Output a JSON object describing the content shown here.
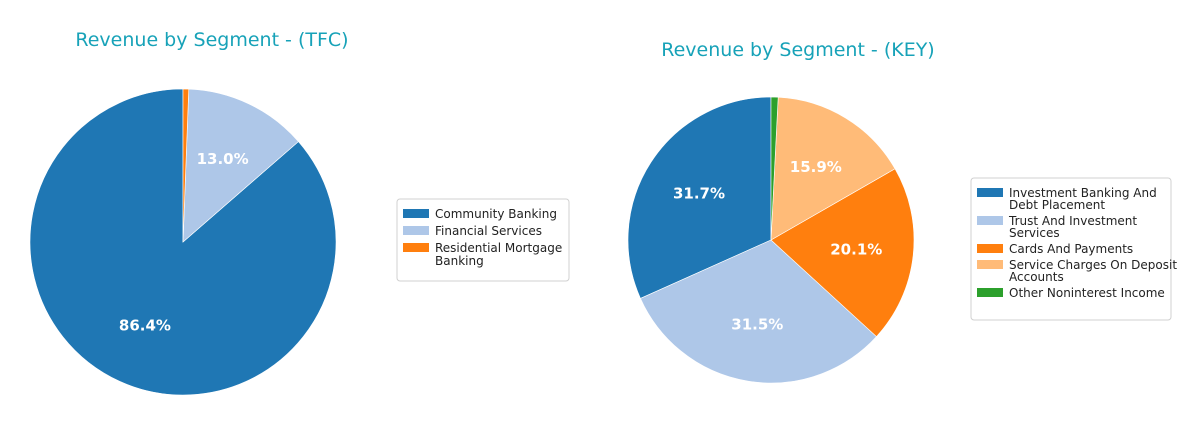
{
  "chart_data": [
    {
      "type": "pie",
      "title": "Revenue by Segment - (TFC)",
      "categories": [
        "Community Banking",
        "Financial Services",
        "Residential Mortgage Banking"
      ],
      "legend_labels": [
        [
          "Community Banking"
        ],
        [
          "Financial Services"
        ],
        [
          "Residential Mortgage",
          "Banking"
        ]
      ],
      "values": [
        86.4,
        13.0,
        0.6
      ],
      "labels": [
        "86.4%",
        "13.0%",
        ""
      ],
      "colors": [
        "#1f77b4",
        "#aec7e8",
        "#ff7f0e"
      ],
      "start_angle": 90,
      "direction": "counterclockwise",
      "legend_position": "right"
    },
    {
      "type": "pie",
      "title": "Revenue by Segment - (KEY)",
      "categories": [
        "Investment Banking And Debt Placement",
        "Trust And Investment Services",
        "Cards And Payments",
        "Service Charges On Deposit Accounts",
        "Other Noninterest Income"
      ],
      "legend_labels": [
        [
          "Investment Banking And",
          "Debt Placement"
        ],
        [
          "Trust And Investment",
          "Services"
        ],
        [
          "Cards And Payments"
        ],
        [
          "Service Charges On Deposit",
          "Accounts"
        ],
        [
          "Other Noninterest Income"
        ]
      ],
      "values": [
        31.7,
        31.5,
        20.1,
        15.9,
        0.8
      ],
      "labels": [
        "31.7%",
        "31.5%",
        "20.1%",
        "15.9%",
        ""
      ],
      "colors": [
        "#1f77b4",
        "#aec7e8",
        "#ff7f0e",
        "#ffbb78",
        "#2ca02c"
      ],
      "start_angle": 90,
      "direction": "counterclockwise",
      "legend_position": "right"
    }
  ]
}
